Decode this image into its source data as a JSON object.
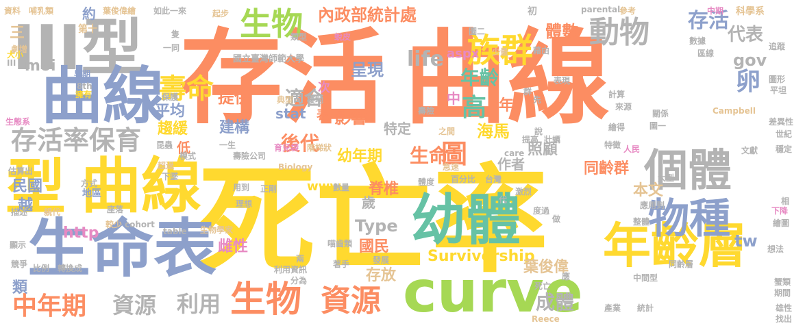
{
  "colors": {
    "orange": "#fc8d62",
    "yellow": "#ffd92f",
    "blue": "#8da0cb",
    "green": "#66c2a5",
    "lime": "#a6d854",
    "pink": "#e78ac3",
    "tan": "#e5c494",
    "gray": "#b3b3b3"
  },
  "words": [
    {
      "text": "存活",
      "color": "orange"
    },
    {
      "text": "曲線",
      "color": "orange"
    },
    {
      "text": "死亡率",
      "color": "yellow"
    },
    {
      "text": "III型",
      "color": "gray"
    },
    {
      "text": "曲線",
      "color": "blue"
    },
    {
      "text": "型",
      "color": "yellow"
    },
    {
      "text": "曲線",
      "color": "yellow"
    },
    {
      "text": "生命表",
      "color": "blue"
    },
    {
      "text": "幼體",
      "color": "green"
    },
    {
      "text": "curve",
      "color": "lime"
    },
    {
      "text": "年齡層",
      "color": "yellow"
    },
    {
      "text": "個體",
      "color": "gray"
    },
    {
      "text": "物種",
      "color": "blue"
    },
    {
      "text": "生物",
      "color": "lime"
    },
    {
      "text": "族群",
      "color": "yellow"
    },
    {
      "text": "動物",
      "color": "gray"
    },
    {
      "text": "內政部統計處",
      "color": "orange"
    },
    {
      "text": "壽命",
      "color": "yellow"
    },
    {
      "text": "存活",
      "color": "blue"
    },
    {
      "text": "存活率保育",
      "color": "gray"
    },
    {
      "text": "中年期",
      "color": "orange"
    },
    {
      "text": "資源",
      "color": "gray"
    },
    {
      "text": "利用",
      "color": "gray"
    },
    {
      "text": "生物",
      "color": "orange"
    },
    {
      "text": "資源",
      "color": "orange"
    },
    {
      "text": "成體",
      "color": "gray"
    },
    {
      "text": "生命",
      "color": "orange"
    },
    {
      "text": "圖",
      "color": "orange"
    },
    {
      "text": "高",
      "color": "green"
    },
    {
      "text": "年齡",
      "color": "green"
    },
    {
      "text": "life",
      "color": "gray"
    },
    {
      "text": "aspx",
      "color": "pink"
    },
    {
      "text": "適合",
      "color": "gray"
    },
    {
      "text": "影響",
      "color": "orange"
    },
    {
      "text": "呈現",
      "color": "blue"
    },
    {
      "text": "提供",
      "color": "orange"
    },
    {
      "text": "後代",
      "color": "orange"
    },
    {
      "text": "海馬",
      "color": "yellow"
    },
    {
      "text": "建構",
      "color": "blue"
    },
    {
      "text": "幼年期",
      "color": "yellow"
    },
    {
      "text": "特定",
      "color": "gray"
    },
    {
      "text": "照顧",
      "color": "gray"
    },
    {
      "text": "作者",
      "color": "gray"
    },
    {
      "text": "同齡群",
      "color": "orange"
    },
    {
      "text": "平均",
      "color": "blue"
    },
    {
      "text": "趨緩",
      "color": "yellow"
    },
    {
      "text": "民國",
      "color": "blue"
    },
    {
      "text": "越",
      "color": "blue"
    },
    {
      "text": "moi",
      "color": "gray"
    },
    {
      "text": "代表",
      "color": "gray"
    },
    {
      "text": "gov",
      "color": "gray"
    },
    {
      "text": "卵",
      "color": "blue"
    },
    {
      "text": "體數",
      "color": "orange"
    },
    {
      "text": "Type",
      "color": "gray"
    },
    {
      "text": "國民",
      "color": "orange"
    },
    {
      "text": "Survivorship",
      "color": "yellow"
    },
    {
      "text": "雌性",
      "color": "pink"
    },
    {
      "text": "葉俊偉",
      "color": "tan"
    },
    {
      "text": "存放",
      "color": "tan"
    },
    {
      "text": "www",
      "color": "yellow"
    },
    {
      "text": "脊椎",
      "color": "orange"
    },
    {
      "text": "http",
      "color": "pink"
    },
    {
      "text": "本文",
      "color": "tan"
    },
    {
      "text": "tw",
      "color": "blue"
    },
    {
      "text": "stat",
      "color": "blue"
    },
    {
      "text": "次",
      "color": "pink"
    },
    {
      "text": "表",
      "color": "orange"
    },
    {
      "text": "低",
      "color": "orange"
    },
    {
      "text": "中",
      "color": "pink"
    },
    {
      "text": "年",
      "color": "orange"
    },
    {
      "text": "歲",
      "color": "gray"
    },
    {
      "text": "類",
      "color": "blue"
    },
    {
      "text": "三",
      "color": "tan"
    },
    {
      "text": "資料",
      "color": "tan"
    },
    {
      "text": "哺乳類",
      "color": "tan"
    },
    {
      "text": "約",
      "color": "blue"
    },
    {
      "text": "葉俊偉繪",
      "color": "tan"
    },
    {
      "text": "如此一來",
      "color": "gray"
    },
    {
      "text": "起步",
      "color": "tan"
    },
    {
      "text": "初",
      "color": "gray"
    },
    {
      "text": "parental",
      "color": "gray"
    },
    {
      "text": "參考",
      "color": "tan"
    },
    {
      "text": "中期",
      "color": "pink"
    },
    {
      "text": "科學系",
      "color": "tan"
    },
    {
      "text": "數據",
      "color": "gray"
    },
    {
      "text": "第十",
      "color": "tan"
    },
    {
      "text": "類型",
      "color": "gray"
    },
    {
      "text": "國立臺灣師範大學",
      "color": "gray"
    },
    {
      "text": "少量",
      "color": "tan"
    },
    {
      "text": "區線",
      "color": "gray"
    },
    {
      "text": "追蹤",
      "color": "gray"
    },
    {
      "text": "劇增",
      "color": "tan"
    },
    {
      "text": "早期",
      "color": "blue"
    },
    {
      "text": "擁有",
      "color": "yellow"
    },
    {
      "text": "保護",
      "color": "gray"
    },
    {
      "text": "生態系",
      "color": "pink"
    },
    {
      "text": "估算出",
      "color": "gray"
    },
    {
      "text": "方式",
      "color": "gray"
    },
    {
      "text": "地區",
      "color": "blue"
    },
    {
      "text": "描述",
      "color": "gray"
    },
    {
      "text": "顯示",
      "color": "gray"
    },
    {
      "text": "競爭",
      "color": "gray"
    },
    {
      "text": "比例",
      "color": "gray"
    },
    {
      "text": "轉換成",
      "color": "gray"
    },
    {
      "text": "模式",
      "color": "gray"
    },
    {
      "text": "超過",
      "color": "tan"
    },
    {
      "text": "一同",
      "color": "gray"
    },
    {
      "text": "壽險公司",
      "color": "gray"
    },
    {
      "text": "Biology",
      "color": "tan"
    },
    {
      "text": "正剛",
      "color": "gray"
    },
    {
      "text": "理想",
      "color": "gray"
    },
    {
      "text": "用到",
      "color": "gray"
    },
    {
      "text": "cohort",
      "color": "gray"
    },
    {
      "text": "table",
      "color": "gray"
    },
    {
      "text": "生物學家",
      "color": "tan"
    },
    {
      "text": "較少",
      "color": "tan"
    },
    {
      "text": "座落",
      "color": "gray"
    },
    {
      "text": "親代",
      "color": "tan"
    },
    {
      "text": "典型",
      "color": "tan"
    },
    {
      "text": "棲地",
      "color": "gray"
    },
    {
      "text": "育兒袋",
      "color": "pink"
    },
    {
      "text": "階梯狀",
      "color": "tan"
    },
    {
      "text": "壽險",
      "color": "gray"
    },
    {
      "text": "之間",
      "color": "tan"
    },
    {
      "text": "急速",
      "color": "tan"
    },
    {
      "text": "台灣",
      "color": "gray"
    },
    {
      "text": "體度",
      "color": "gray"
    },
    {
      "text": "百分比",
      "color": "gray"
    },
    {
      "text": "數量",
      "color": "gray"
    },
    {
      "text": "激烈",
      "color": "gray"
    },
    {
      "text": "著手",
      "color": "gray"
    },
    {
      "text": "發展",
      "color": "gray"
    },
    {
      "text": "喵齒類",
      "color": "gray"
    },
    {
      "text": "資訊",
      "color": "gray"
    },
    {
      "text": "分為",
      "color": "gray"
    },
    {
      "text": "利用",
      "color": "gray"
    },
    {
      "text": "兩",
      "color": "gray"
    },
    {
      "text": "提高",
      "color": "gray"
    },
    {
      "text": "壯蠣",
      "color": "gray"
    },
    {
      "text": "繪得",
      "color": "gray"
    },
    {
      "text": "特徵",
      "color": "gray"
    },
    {
      "text": "人民",
      "color": "pink"
    },
    {
      "text": "大型",
      "color": "gray"
    },
    {
      "text": "應用到",
      "color": "gray"
    },
    {
      "text": "整體",
      "color": "gray"
    },
    {
      "text": "同齡層",
      "color": "gray"
    },
    {
      "text": "中間型",
      "color": "gray"
    },
    {
      "text": "統計",
      "color": "gray"
    },
    {
      "text": "產業",
      "color": "gray"
    },
    {
      "text": "Reece",
      "color": "tan"
    },
    {
      "text": "死亡",
      "color": "gray"
    },
    {
      "text": "計算",
      "color": "gray"
    },
    {
      "text": "來源",
      "color": "gray"
    },
    {
      "text": "關係",
      "color": "gray"
    },
    {
      "text": "圖一",
      "color": "gray"
    },
    {
      "text": "Campbell",
      "color": "tan"
    },
    {
      "text": "圖形",
      "color": "gray"
    },
    {
      "text": "平坦",
      "color": "gray"
    },
    {
      "text": "世紀",
      "color": "gray"
    },
    {
      "text": "差異性",
      "color": "gray"
    },
    {
      "text": "穩定",
      "color": "gray"
    },
    {
      "text": "文獻",
      "color": "gray"
    },
    {
      "text": "下降",
      "color": "pink"
    },
    {
      "text": "繪圖",
      "color": "gray"
    },
    {
      "text": "想法",
      "color": "gray"
    },
    {
      "text": "蟹類",
      "color": "gray"
    },
    {
      "text": "期間",
      "color": "gray"
    },
    {
      "text": "雄性",
      "color": "gray"
    },
    {
      "text": "找出",
      "color": "gray"
    },
    {
      "text": "care",
      "color": "gray"
    },
    {
      "text": "藉由",
      "color": "gray"
    },
    {
      "text": "大小",
      "color": "yellow"
    },
    {
      "text": "III",
      "color": "gray"
    },
    {
      "text": "8th",
      "color": "gray"
    },
    {
      "text": "蛻皮",
      "color": "pink"
    },
    {
      "text": "昆蟲",
      "color": "gray"
    },
    {
      "text": "一生",
      "color": "gray"
    },
    {
      "text": "下墜",
      "color": "gray"
    },
    {
      "text": "做",
      "color": "gray"
    },
    {
      "text": "表現",
      "color": "gray"
    },
    {
      "text": "群",
      "color": "gray"
    },
    {
      "text": "相",
      "color": "gray"
    },
    {
      "text": "度過",
      "color": "gray"
    },
    {
      "text": "應",
      "color": "gray"
    },
    {
      "text": "代",
      "color": "gray"
    },
    {
      "text": "圖二",
      "color": "gray"
    },
    {
      "text": "隻",
      "color": "gray"
    },
    {
      "text": "先",
      "color": "gray"
    },
    {
      "text": "說",
      "color": "gray"
    }
  ]
}
